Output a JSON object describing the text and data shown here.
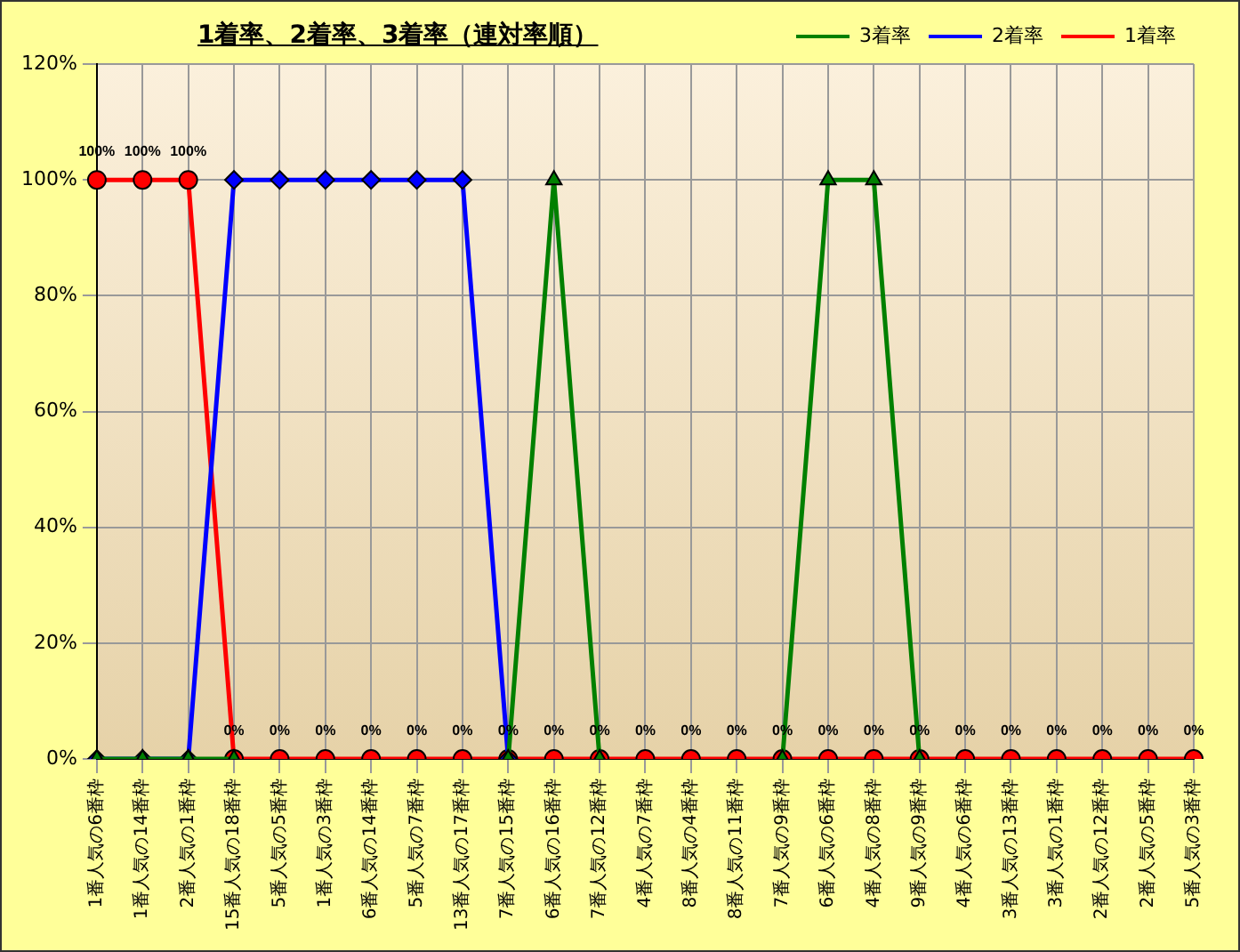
{
  "chart_data": {
    "type": "line",
    "title": "1着率、2着率、3着率（連対率順）",
    "categories": [
      "1番人気の6番枠",
      "1番人気の14番枠",
      "2番人気の1番枠",
      "15番人気の18番枠",
      "5番人気の5番枠",
      "1番人気の3番枠",
      "6番人気の14番枠",
      "5番人気の7番枠",
      "13番人気の17番枠",
      "7番人気の15番枠",
      "6番人気の16番枠",
      "7番人気の12番枠",
      "4番人気の7番枠",
      "8番人気の4番枠",
      "8番人気の11番枠",
      "7番人気の9番枠",
      "6番人気の6番枠",
      "4番人気の8番枠",
      "9番人気の9番枠",
      "4番人気の6番枠",
      "3番人気の13番枠",
      "3番人気の1番枠",
      "2番人気の12番枠",
      "2番人気の5番枠",
      "5番人気の3番枠"
    ],
    "series": [
      {
        "name": "3着率",
        "color": "#008000",
        "marker": "triangle",
        "values": [
          0,
          0,
          0,
          0,
          null,
          null,
          null,
          null,
          null,
          0,
          100,
          0,
          null,
          null,
          null,
          0,
          100,
          100,
          0,
          null,
          null,
          null,
          null,
          null,
          null
        ]
      },
      {
        "name": "2着率",
        "color": "#0000ff",
        "marker": "diamond",
        "values": [
          0,
          0,
          0,
          100,
          100,
          100,
          100,
          100,
          100,
          0,
          null,
          null,
          null,
          null,
          null,
          null,
          null,
          null,
          null,
          null,
          null,
          null,
          null,
          null,
          null
        ]
      },
      {
        "name": "1着率",
        "color": "#ff0000",
        "marker": "circle",
        "values": [
          100,
          100,
          100,
          0,
          0,
          0,
          0,
          0,
          0,
          0,
          0,
          0,
          0,
          0,
          0,
          0,
          0,
          0,
          0,
          0,
          0,
          0,
          0,
          0,
          0
        ],
        "value_labels": [
          "100%",
          "100%",
          "100%",
          "0%",
          "0%",
          "0%",
          "0%",
          "0%",
          "0%",
          "0%",
          "0%",
          "0%",
          "0%",
          "0%",
          "0%",
          "0%",
          "0%",
          "0%",
          "0%",
          "0%",
          "0%",
          "0%",
          "0%",
          "0%",
          "0%"
        ]
      }
    ],
    "ylim": [
      0,
      120
    ],
    "yticks": [
      {
        "value": 0,
        "label": "0%"
      },
      {
        "value": 20,
        "label": "20%"
      },
      {
        "value": 40,
        "label": "40%"
      },
      {
        "value": 60,
        "label": "60%"
      },
      {
        "value": 80,
        "label": "80%"
      },
      {
        "value": 100,
        "label": "100%"
      },
      {
        "value": 120,
        "label": "120%"
      }
    ],
    "grid": true,
    "legend": "top right",
    "line_style": "solid"
  }
}
